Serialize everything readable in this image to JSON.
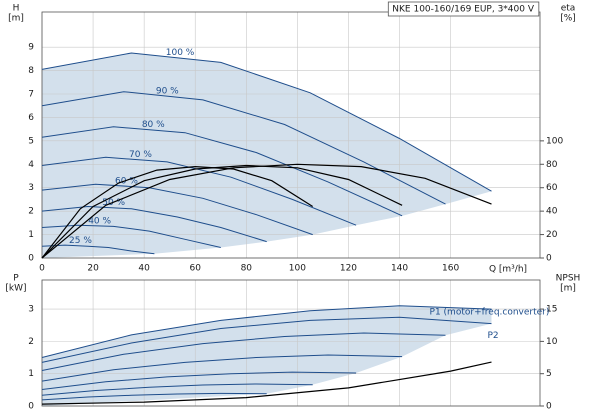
{
  "chart_data": [
    {
      "type": "line",
      "title": "NKE 100-160/169 EUP, 3*400 V",
      "x_label": "Q [m³/h]",
      "y_label": "H",
      "y_unit": "[m]",
      "y2_label": "eta",
      "y2_unit": "[%]",
      "xlim": [
        0,
        195
      ],
      "xticks": [
        0,
        20,
        40,
        60,
        80,
        100,
        120,
        140,
        160
      ],
      "ylim": [
        0,
        10.5
      ],
      "yticks": [
        0,
        1,
        2,
        3,
        4,
        5,
        6,
        7,
        8,
        9
      ],
      "y2lim": [
        0,
        210
      ],
      "y2ticks": [
        0,
        20,
        40,
        60,
        80,
        100
      ],
      "grid": true,
      "fill_color": "#d3e0ec",
      "series": [
        {
          "name": "100 %",
          "color": "#1f4e8c",
          "x": [
            0,
            35,
            70,
            105,
            140,
            176
          ],
          "values": [
            8.05,
            8.75,
            8.35,
            7.05,
            5.1,
            2.85
          ]
        },
        {
          "name": "90 %",
          "color": "#1f4e8c",
          "x": [
            0,
            32,
            63,
            95,
            126,
            158
          ],
          "values": [
            6.5,
            7.1,
            6.75,
            5.7,
            4.1,
            2.3
          ]
        },
        {
          "name": "80 %",
          "color": "#1f4e8c",
          "x": [
            0,
            28,
            56,
            84,
            112,
            141
          ],
          "values": [
            5.15,
            5.6,
            5.35,
            4.5,
            3.25,
            1.8
          ]
        },
        {
          "name": "70 %",
          "color": "#1f4e8c",
          "x": [
            0,
            25,
            49,
            74,
            98,
            123
          ],
          "values": [
            3.95,
            4.3,
            4.1,
            3.45,
            2.5,
            1.4
          ]
        },
        {
          "name": "60 %",
          "color": "#1f4e8c",
          "x": [
            0,
            21,
            42,
            63,
            84,
            106
          ],
          "values": [
            2.9,
            3.15,
            3.0,
            2.55,
            1.85,
            1.0
          ]
        },
        {
          "name": "50 %",
          "color": "#1f4e8c",
          "x": [
            0,
            18,
            35,
            53,
            70,
            88
          ],
          "values": [
            2.0,
            2.2,
            2.1,
            1.75,
            1.3,
            0.7
          ]
        },
        {
          "name": "40 %",
          "color": "#1f4e8c",
          "x": [
            0,
            14,
            28,
            42,
            56,
            70
          ],
          "values": [
            1.3,
            1.4,
            1.35,
            1.15,
            0.8,
            0.45
          ]
        },
        {
          "name": "25 %",
          "color": "#1f4e8c",
          "x": [
            0,
            9,
            18,
            26,
            35,
            44
          ],
          "values": [
            0.5,
            0.55,
            0.5,
            0.45,
            0.3,
            0.18
          ]
        },
        {
          "axis": "y2",
          "color": "#000000",
          "x": [
            0,
            25,
            50,
            75,
            100,
            125,
            150,
            176
          ],
          "values": [
            0,
            45,
            67,
            77,
            80,
            78,
            68,
            46
          ]
        },
        {
          "axis": "y2",
          "color": "#000000",
          "x": [
            0,
            20,
            40,
            60,
            80,
            100,
            120,
            141
          ],
          "values": [
            0,
            44,
            66,
            76,
            79,
            77,
            67,
            45
          ]
        },
        {
          "axis": "y2",
          "color": "#000000",
          "x": [
            0,
            15,
            30,
            45,
            60,
            75,
            90,
            106
          ],
          "values": [
            0,
            42,
            64,
            75,
            78,
            76,
            66,
            44
          ]
        }
      ]
    },
    {
      "type": "line",
      "y_label": "P",
      "y_unit": "[kW]",
      "y2_label": "NPSH",
      "y2_unit": "[m]",
      "xlim": [
        0,
        195
      ],
      "xticks": [
        0,
        20,
        40,
        60,
        80,
        100,
        120,
        140,
        160
      ],
      "ylim": [
        0,
        3.9
      ],
      "yticks": [
        0,
        1,
        2,
        3
      ],
      "y2lim": [
        0,
        19.5
      ],
      "y2ticks": [
        0,
        5,
        10,
        15
      ],
      "grid": true,
      "fill_color": "#d3e0ec",
      "series": [
        {
          "name": "P1 (motor+freq.converter)",
          "color": "#1f4e8c",
          "x": [
            0,
            35,
            70,
            105,
            140,
            176
          ],
          "values": [
            1.5,
            2.2,
            2.65,
            2.95,
            3.1,
            3.0
          ]
        },
        {
          "name": "P2",
          "color": "#1f4e8c",
          "x": [
            0,
            35,
            70,
            105,
            140,
            176
          ],
          "values": [
            1.35,
            1.95,
            2.4,
            2.65,
            2.75,
            2.55
          ]
        },
        {
          "color": "#1f4e8c",
          "x": [
            0,
            32,
            63,
            95,
            126,
            158
          ],
          "values": [
            1.1,
            1.6,
            1.93,
            2.15,
            2.26,
            2.19
          ]
        },
        {
          "color": "#1f4e8c",
          "x": [
            0,
            28,
            56,
            84,
            112,
            141
          ],
          "values": [
            0.77,
            1.12,
            1.35,
            1.5,
            1.58,
            1.53
          ]
        },
        {
          "color": "#1f4e8c",
          "x": [
            0,
            25,
            49,
            74,
            98,
            123
          ],
          "values": [
            0.51,
            0.75,
            0.9,
            1.0,
            1.05,
            1.02
          ]
        },
        {
          "color": "#1f4e8c",
          "x": [
            0,
            21,
            42,
            63,
            84,
            106
          ],
          "values": [
            0.33,
            0.48,
            0.58,
            0.65,
            0.68,
            0.66
          ]
        },
        {
          "color": "#1f4e8c",
          "x": [
            0,
            18,
            35,
            53,
            70,
            88
          ],
          "values": [
            0.19,
            0.28,
            0.33,
            0.37,
            0.39,
            0.38
          ]
        },
        {
          "axis": "y2",
          "color": "#000000",
          "x": [
            0,
            40,
            80,
            120,
            160,
            176
          ],
          "values": [
            0.3,
            0.6,
            1.3,
            2.8,
            5.4,
            6.8
          ]
        }
      ]
    }
  ]
}
